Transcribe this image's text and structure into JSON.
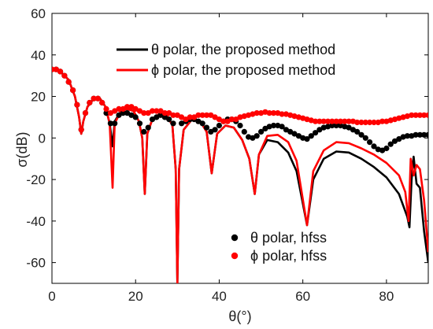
{
  "chart_data": {
    "type": "line",
    "xlabel": "θ(°)",
    "ylabel": "σ(dB)",
    "xlim": [
      0,
      90
    ],
    "ylim": [
      -70,
      60
    ],
    "x_ticks": [
      0,
      20,
      40,
      60,
      80
    ],
    "y_ticks": [
      60,
      40,
      20,
      0,
      -20,
      -40,
      -60
    ],
    "x_tick_labels": [
      "0",
      "20",
      "40",
      "60",
      "80"
    ],
    "y_tick_labels": [
      "60",
      "40",
      "20",
      "0",
      "-20",
      "-40",
      "-60"
    ],
    "grid": false,
    "legend_placement": "top-center and bottom-right",
    "series": [
      {
        "name": "θ polar, the proposed method",
        "style": "line",
        "color": "#000000",
        "points": [
          [
            0,
            33
          ],
          [
            2,
            32
          ],
          [
            4,
            28
          ],
          [
            5.5,
            20
          ],
          [
            6.5,
            10
          ],
          [
            7,
            2
          ],
          [
            7.5,
            8
          ],
          [
            8.5,
            15
          ],
          [
            10,
            19
          ],
          [
            11.5,
            19
          ],
          [
            12.8,
            15
          ],
          [
            13.8,
            7
          ],
          [
            14.5,
            -4
          ],
          [
            15,
            8
          ],
          [
            16.5,
            13
          ],
          [
            18,
            14
          ],
          [
            19.5,
            13
          ],
          [
            20.8,
            8
          ],
          [
            21.6,
            0
          ],
          [
            22.2,
            -27
          ],
          [
            22.8,
            2
          ],
          [
            24,
            9
          ],
          [
            26,
            12
          ],
          [
            27.5,
            11
          ],
          [
            28.8,
            6
          ],
          [
            29.6,
            -15
          ],
          [
            30,
            -70
          ],
          [
            30.4,
            -15
          ],
          [
            31.5,
            4
          ],
          [
            33.5,
            9
          ],
          [
            35.5,
            8
          ],
          [
            37,
            3
          ],
          [
            38.2,
            -17
          ],
          [
            39.5,
            2
          ],
          [
            41.5,
            6
          ],
          [
            43.5,
            5
          ],
          [
            45.5,
            -1
          ],
          [
            47.2,
            -10
          ],
          [
            48.5,
            -27
          ],
          [
            49.5,
            -8
          ],
          [
            51.5,
            -1
          ],
          [
            54,
            -2
          ],
          [
            56.5,
            -7
          ],
          [
            58.5,
            -16
          ],
          [
            61,
            -42
          ],
          [
            62.5,
            -20
          ],
          [
            65,
            -10
          ],
          [
            68,
            -6.5
          ],
          [
            71,
            -7
          ],
          [
            74,
            -10
          ],
          [
            77,
            -14
          ],
          [
            80,
            -19
          ],
          [
            83,
            -27
          ],
          [
            85,
            -38
          ],
          [
            85.5,
            -43
          ],
          [
            86,
            -20
          ],
          [
            86.5,
            -9
          ],
          [
            87.2,
            -22
          ],
          [
            88,
            -24
          ],
          [
            89,
            -45
          ],
          [
            90,
            -60
          ]
        ]
      },
      {
        "name": "ϕ polar, the proposed method",
        "style": "line",
        "color": "#ff0000",
        "points": [
          [
            0,
            33
          ],
          [
            2,
            32
          ],
          [
            4,
            28
          ],
          [
            5.5,
            20
          ],
          [
            6.5,
            10
          ],
          [
            7,
            2
          ],
          [
            7.5,
            8
          ],
          [
            8.5,
            15
          ],
          [
            10,
            19
          ],
          [
            11.5,
            19
          ],
          [
            12.8,
            15
          ],
          [
            13.8,
            7
          ],
          [
            14.5,
            -24
          ],
          [
            15,
            7
          ],
          [
            16.5,
            13
          ],
          [
            18,
            14
          ],
          [
            19.5,
            13
          ],
          [
            20.8,
            8
          ],
          [
            21.6,
            0
          ],
          [
            22.2,
            -27
          ],
          [
            22.8,
            2
          ],
          [
            24,
            9
          ],
          [
            26,
            12
          ],
          [
            27.5,
            11
          ],
          [
            28.8,
            6
          ],
          [
            29.6,
            -15
          ],
          [
            30,
            -70
          ],
          [
            30.4,
            -15
          ],
          [
            31.5,
            4
          ],
          [
            33.5,
            9
          ],
          [
            35.5,
            8
          ],
          [
            37,
            3
          ],
          [
            38.2,
            -17
          ],
          [
            39.5,
            2
          ],
          [
            41.5,
            6
          ],
          [
            43.5,
            5
          ],
          [
            45.5,
            -1
          ],
          [
            47.2,
            -10
          ],
          [
            48.5,
            -27
          ],
          [
            49.5,
            -8
          ],
          [
            51.5,
            1
          ],
          [
            54,
            1.5
          ],
          [
            56.5,
            -2
          ],
          [
            58.5,
            -11
          ],
          [
            61,
            -42
          ],
          [
            62.5,
            -16
          ],
          [
            65,
            -6
          ],
          [
            68,
            -2
          ],
          [
            71,
            -2.5
          ],
          [
            74,
            -5
          ],
          [
            77,
            -8
          ],
          [
            80,
            -12
          ],
          [
            83,
            -18
          ],
          [
            84.5,
            -26
          ],
          [
            85.3,
            -40
          ],
          [
            85.8,
            -10
          ],
          [
            86.5,
            -18
          ],
          [
            87.2,
            -13
          ],
          [
            88,
            -15
          ],
          [
            89,
            -30
          ],
          [
            90,
            -55
          ]
        ]
      },
      {
        "name": "θ polar, hfss",
        "style": "dots",
        "color": "#000000",
        "points": [
          [
            0,
            33
          ],
          [
            1,
            33
          ],
          [
            2,
            32
          ],
          [
            3,
            30
          ],
          [
            4,
            27
          ],
          [
            5,
            23
          ],
          [
            6,
            16
          ],
          [
            7,
            4
          ],
          [
            8,
            12
          ],
          [
            9,
            17
          ],
          [
            10,
            19
          ],
          [
            11,
            19
          ],
          [
            12,
            17
          ],
          [
            13,
            12
          ],
          [
            14,
            7
          ],
          [
            15,
            7
          ],
          [
            16,
            11
          ],
          [
            17,
            12
          ],
          [
            18,
            12
          ],
          [
            19,
            11
          ],
          [
            20,
            10
          ],
          [
            21,
            7
          ],
          [
            22,
            3
          ],
          [
            23,
            5
          ],
          [
            24,
            9
          ],
          [
            25,
            10
          ],
          [
            26,
            11
          ],
          [
            27,
            10
          ],
          [
            28,
            9
          ],
          [
            29,
            7
          ],
          [
            31,
            7
          ],
          [
            32,
            8
          ],
          [
            33,
            9
          ],
          [
            34,
            9
          ],
          [
            35,
            8
          ],
          [
            36,
            7
          ],
          [
            37,
            5
          ],
          [
            38,
            3
          ],
          [
            39,
            4
          ],
          [
            40,
            6
          ],
          [
            41,
            8
          ],
          [
            42,
            9
          ],
          [
            43,
            9
          ],
          [
            44,
            8
          ],
          [
            45,
            6
          ],
          [
            46,
            3
          ],
          [
            47,
            0.5
          ],
          [
            48,
            0
          ],
          [
            49,
            1
          ],
          [
            50,
            3
          ],
          [
            51,
            4.5
          ],
          [
            52,
            5.5
          ],
          [
            53,
            6
          ],
          [
            54,
            6
          ],
          [
            55,
            5.5
          ],
          [
            56,
            4
          ],
          [
            57,
            3
          ],
          [
            58,
            2
          ],
          [
            59,
            1
          ],
          [
            60,
            0
          ],
          [
            61,
            -0.5
          ],
          [
            62,
            1
          ],
          [
            63,
            2.5
          ],
          [
            64,
            4
          ],
          [
            65,
            5
          ],
          [
            66,
            5.5
          ],
          [
            67,
            6
          ],
          [
            68,
            6
          ],
          [
            69,
            6
          ],
          [
            70,
            5.5
          ],
          [
            71,
            5
          ],
          [
            72,
            4
          ],
          [
            73,
            3
          ],
          [
            74,
            1.5
          ],
          [
            75,
            0
          ],
          [
            76,
            -2
          ],
          [
            77,
            -4
          ],
          [
            78,
            -5.5
          ],
          [
            79,
            -6
          ],
          [
            80,
            -5
          ],
          [
            81,
            -3
          ],
          [
            82,
            -1.5
          ],
          [
            83,
            -0.5
          ],
          [
            84,
            0.5
          ],
          [
            85,
            1
          ],
          [
            86,
            1
          ],
          [
            87,
            1.5
          ],
          [
            88,
            1.5
          ],
          [
            89,
            1.5
          ],
          [
            90,
            1.5
          ]
        ]
      },
      {
        "name": "ϕ polar, hfss",
        "style": "dots",
        "color": "#ff0000",
        "points": [
          [
            0,
            33
          ],
          [
            1,
            33
          ],
          [
            2,
            32
          ],
          [
            3,
            30
          ],
          [
            4,
            27
          ],
          [
            5,
            23
          ],
          [
            6,
            16
          ],
          [
            7,
            4
          ],
          [
            8,
            12
          ],
          [
            9,
            17
          ],
          [
            10,
            19
          ],
          [
            11,
            19
          ],
          [
            12,
            17
          ],
          [
            13,
            14
          ],
          [
            14,
            12
          ],
          [
            15,
            13
          ],
          [
            16,
            14
          ],
          [
            17,
            14
          ],
          [
            18,
            15
          ],
          [
            19,
            15
          ],
          [
            20,
            14
          ],
          [
            21,
            13
          ],
          [
            22,
            12
          ],
          [
            23,
            12
          ],
          [
            24,
            13
          ],
          [
            25,
            13
          ],
          [
            26,
            13
          ],
          [
            27,
            12
          ],
          [
            28,
            12
          ],
          [
            29,
            11
          ],
          [
            30,
            11
          ],
          [
            31,
            10
          ],
          [
            32,
            9
          ],
          [
            33,
            10
          ],
          [
            34,
            10
          ],
          [
            35,
            11
          ],
          [
            36,
            11
          ],
          [
            37,
            11
          ],
          [
            38,
            11
          ],
          [
            39,
            10
          ],
          [
            40,
            9
          ],
          [
            41,
            8
          ],
          [
            42,
            8
          ],
          [
            43,
            9
          ],
          [
            44,
            9
          ],
          [
            45,
            10
          ],
          [
            46,
            10.5
          ],
          [
            47,
            11
          ],
          [
            48,
            11.5
          ],
          [
            49,
            12
          ],
          [
            50,
            12
          ],
          [
            51,
            12.5
          ],
          [
            52,
            12
          ],
          [
            53,
            12
          ],
          [
            54,
            12
          ],
          [
            55,
            11.5
          ],
          [
            56,
            11.5
          ],
          [
            57,
            11
          ],
          [
            58,
            10.5
          ],
          [
            59,
            10
          ],
          [
            60,
            9.5
          ],
          [
            61,
            9
          ],
          [
            62,
            8.5
          ],
          [
            63,
            8
          ],
          [
            64,
            8
          ],
          [
            65,
            8
          ],
          [
            66,
            8
          ],
          [
            67,
            8
          ],
          [
            68,
            8
          ],
          [
            69,
            8
          ],
          [
            70,
            8
          ],
          [
            71,
            8
          ],
          [
            72,
            8
          ],
          [
            73,
            7.5
          ],
          [
            74,
            7.5
          ],
          [
            75,
            7.5
          ],
          [
            76,
            7.5
          ],
          [
            77,
            7.5
          ],
          [
            78,
            7.5
          ],
          [
            79,
            8
          ],
          [
            80,
            8
          ],
          [
            81,
            8.5
          ],
          [
            82,
            9
          ],
          [
            83,
            9.5
          ],
          [
            84,
            10
          ],
          [
            85,
            10.5
          ],
          [
            86,
            11
          ],
          [
            87,
            11
          ],
          [
            88,
            11
          ],
          [
            89,
            11
          ],
          [
            90,
            11
          ]
        ]
      }
    ]
  }
}
